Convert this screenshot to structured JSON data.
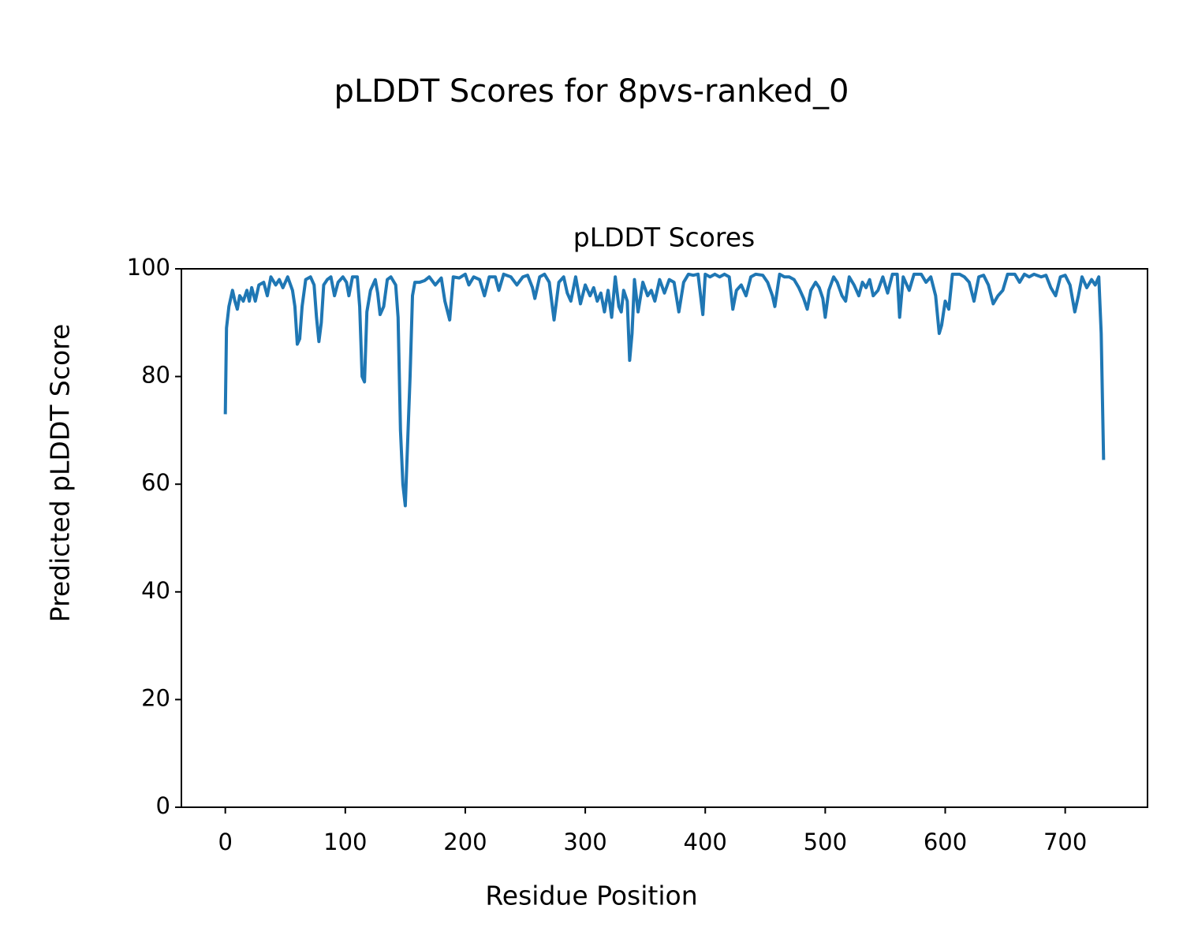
{
  "chart_data": {
    "type": "line",
    "suptitle": "pLDDT Scores for 8pvs-ranked_0",
    "title": "pLDDT Scores",
    "xlabel": "Residue Position",
    "ylabel": "Predicted pLDDT Score",
    "x": [
      0,
      1,
      3,
      6,
      8,
      10,
      12,
      15,
      18,
      20,
      22,
      25,
      28,
      32,
      35,
      38,
      42,
      45,
      48,
      52,
      56,
      58,
      60,
      62,
      64,
      67,
      71,
      74,
      76,
      78,
      80,
      82,
      85,
      88,
      91,
      94,
      98,
      101,
      103,
      106,
      110,
      112,
      114,
      116,
      118,
      121,
      125,
      127,
      129,
      132,
      135,
      138,
      142,
      144,
      146,
      148,
      150,
      152,
      154,
      156,
      158,
      162,
      166,
      170,
      175,
      180,
      183,
      187,
      190,
      195,
      200,
      203,
      207,
      212,
      216,
      220,
      225,
      228,
      232,
      238,
      243,
      248,
      252,
      256,
      258,
      262,
      266,
      270,
      274,
      278,
      282,
      285,
      288,
      292,
      296,
      300,
      304,
      307,
      310,
      313,
      316,
      319,
      322,
      325,
      328,
      330,
      332,
      335,
      337,
      339,
      341,
      344,
      348,
      352,
      355,
      358,
      362,
      366,
      370,
      374,
      378,
      382,
      386,
      390,
      394,
      398,
      400,
      404,
      408,
      412,
      416,
      420,
      423,
      426,
      430,
      434,
      438,
      442,
      448,
      452,
      456,
      458,
      462,
      466,
      470,
      474,
      478,
      482,
      485,
      488,
      492,
      495,
      498,
      500,
      503,
      507,
      510,
      514,
      517,
      520,
      524,
      528,
      531,
      534,
      537,
      540,
      544,
      548,
      552,
      556,
      560,
      562,
      565,
      570,
      574,
      580,
      584,
      588,
      592,
      595,
      597,
      600,
      603,
      606,
      612,
      616,
      620,
      624,
      628,
      632,
      636,
      640,
      644,
      648,
      652,
      658,
      662,
      666,
      670,
      674,
      680,
      684,
      688,
      692,
      696,
      700,
      704,
      708,
      711,
      714,
      718,
      722,
      725,
      728,
      730,
      732
    ],
    "values": [
      73,
      89,
      93,
      96,
      94,
      92.5,
      95,
      94,
      96,
      94,
      96.5,
      94,
      97,
      97.5,
      95,
      98.5,
      97,
      98,
      96.5,
      98.5,
      96,
      93,
      86,
      87,
      93,
      98,
      98.5,
      97,
      91,
      86.5,
      90,
      97,
      98,
      98.5,
      95,
      97.5,
      98.5,
      97.5,
      95,
      98.5,
      98.5,
      93,
      80,
      79,
      92,
      96,
      98,
      95.5,
      91.5,
      93,
      98,
      98.5,
      97,
      91,
      70,
      60,
      56,
      68,
      80,
      95,
      97.5,
      97.5,
      97.8,
      98.5,
      97,
      98.3,
      94,
      90.5,
      98.5,
      98.3,
      99,
      97,
      98.5,
      98,
      95,
      98.5,
      98.5,
      96,
      99,
      98.5,
      97,
      98.5,
      98.8,
      96.5,
      94.5,
      98.5,
      99,
      97.5,
      90.5,
      97.5,
      98.5,
      95.5,
      94,
      98.5,
      93.5,
      97,
      95,
      96.5,
      94,
      95.5,
      92,
      96,
      91,
      98.5,
      93,
      92,
      96,
      94,
      83,
      88,
      98,
      92,
      97.5,
      95,
      96,
      94,
      98,
      95.5,
      98,
      97.5,
      92,
      97.5,
      99,
      98.8,
      99,
      91.5,
      99,
      98.5,
      99,
      98.5,
      99,
      98.5,
      92.5,
      96,
      97,
      95,
      98.5,
      99,
      98.8,
      97.5,
      95,
      93,
      99,
      98.5,
      98.5,
      98,
      96.5,
      94.5,
      92.5,
      96,
      97.5,
      96.5,
      94.5,
      91,
      96,
      98.5,
      97.5,
      95,
      94,
      98.5,
      97,
      95,
      97.5,
      96.5,
      98,
      95,
      96,
      98.5,
      95.5,
      99,
      99,
      91,
      98.5,
      96,
      99,
      99,
      97.5,
      98.5,
      95,
      88,
      89.5,
      94,
      92.5,
      99,
      99,
      98.5,
      97.5,
      94,
      98.5,
      98.8,
      97,
      93.5,
      95,
      96,
      99,
      99,
      97.5,
      99,
      98.5,
      99,
      98.5,
      98.8,
      96.5,
      95,
      98.5,
      98.8,
      97,
      92,
      95,
      98.5,
      96.5,
      98,
      97,
      98.5,
      88,
      64.5
    ],
    "color": "#1f77b4",
    "xlim": [
      -36.6,
      768.6
    ],
    "xticks": [
      0,
      100,
      200,
      300,
      400,
      500,
      600,
      700
    ],
    "ylim": [
      0,
      100
    ],
    "yticks": [
      0,
      20,
      40,
      60,
      80,
      100
    ],
    "grid": false
  }
}
